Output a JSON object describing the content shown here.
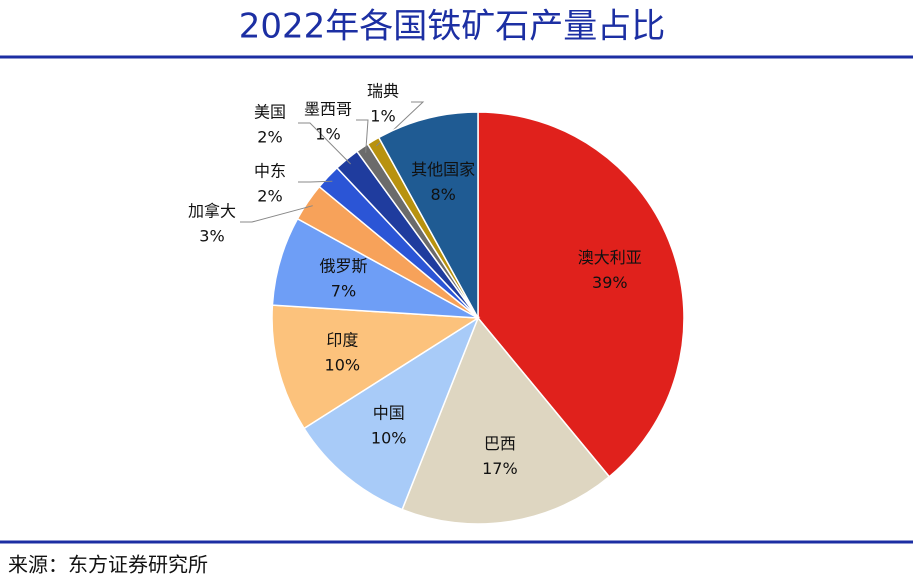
{
  "chart_data": {
    "type": "pie",
    "title": "2022年各国铁矿石产量占比",
    "categories": [
      "澳大利亚",
      "巴西",
      "中国",
      "印度",
      "俄罗斯",
      "加拿大",
      "中东",
      "美国",
      "墨西哥",
      "瑞典",
      "其他国家"
    ],
    "values": [
      39,
      17,
      10,
      10,
      7,
      3,
      2,
      2,
      1,
      1,
      8
    ],
    "value_labels": [
      "39%",
      "17%",
      "10%",
      "10%",
      "7%",
      "3%",
      "2%",
      "2%",
      "1%",
      "1%",
      "8%"
    ],
    "colors": [
      "#e0211c",
      "#ded6c1",
      "#a8cbf8",
      "#fcc27c",
      "#6e9ef6",
      "#f7a25a",
      "#2b55d6",
      "#1f3c9e",
      "#6b6b6b",
      "#b8920f",
      "#1f5b93"
    ],
    "source": "来源：东方证券研究所"
  }
}
